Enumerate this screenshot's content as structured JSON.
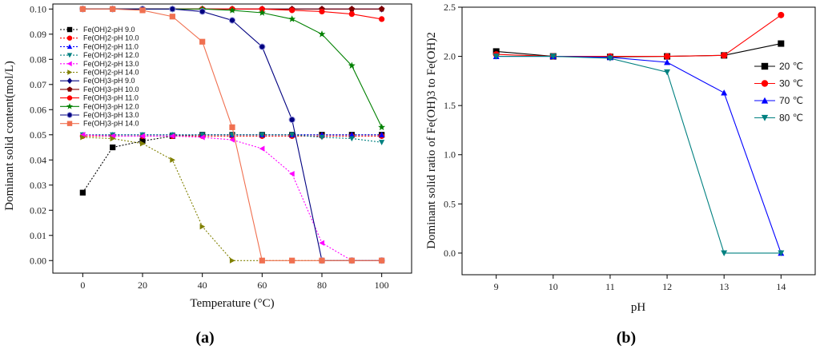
{
  "chart_data": [
    {
      "type": "line",
      "panel_label": "(a)",
      "xlabel": "Temperature (°C)",
      "ylabel": "Dominant solid content(mol/L)",
      "xlim": [
        -10,
        110
      ],
      "ylim": [
        -0.005,
        0.102
      ],
      "xticks": [
        0,
        20,
        40,
        60,
        80,
        100
      ],
      "yticks": [
        0.0,
        0.01,
        0.02,
        0.03,
        0.04,
        0.05,
        0.06,
        0.07,
        0.08,
        0.09,
        0.1
      ],
      "x": [
        0,
        10,
        20,
        30,
        40,
        50,
        60,
        70,
        80,
        90,
        100
      ],
      "legend_position": "top-left",
      "series": [
        {
          "name": "Fe(OH)2-pH 9.0",
          "color": "#000000",
          "marker": "square",
          "dashed": true,
          "values": [
            0.027,
            0.045,
            0.0475,
            0.0495,
            0.05,
            0.05,
            0.05,
            0.05,
            0.05,
            0.05,
            0.05
          ]
        },
        {
          "name": "Fe(OH)2-pH 10.0",
          "color": "#ff0000",
          "marker": "circle",
          "dashed": true,
          "values": [
            0.0495,
            0.0495,
            0.0495,
            0.0495,
            0.0495,
            0.0495,
            0.0495,
            0.0495,
            0.0495,
            0.0495,
            0.0495
          ]
        },
        {
          "name": "Fe(OH)2-pH 11.0",
          "color": "#0000ff",
          "marker": "triangle-up",
          "dashed": true,
          "values": [
            0.05,
            0.05,
            0.05,
            0.05,
            0.05,
            0.05,
            0.05,
            0.05,
            0.05,
            0.05,
            0.05
          ]
        },
        {
          "name": "Fe(OH)2-pH 12.0",
          "color": "#008080",
          "marker": "triangle-down",
          "dashed": true,
          "values": [
            0.05,
            0.05,
            0.05,
            0.05,
            0.05,
            0.05,
            0.05,
            0.05,
            0.049,
            0.0485,
            0.047
          ]
        },
        {
          "name": "Fe(OH)2-pH 13.0",
          "color": "#ff00ff",
          "marker": "triangle-left",
          "dashed": true,
          "values": [
            0.05,
            0.0495,
            0.0495,
            0.0495,
            0.049,
            0.048,
            0.0445,
            0.0345,
            0.007,
            0.0,
            0.0
          ]
        },
        {
          "name": "Fe(OH)2-pH 14.0",
          "color": "#808000",
          "marker": "triangle-right",
          "dashed": true,
          "values": [
            0.049,
            0.0485,
            0.0465,
            0.04,
            0.0135,
            0.0,
            0.0,
            0.0,
            0.0,
            0.0,
            0.0
          ]
        },
        {
          "name": "Fe(OH)3-pH 9.0",
          "color": "#000080",
          "marker": "diamond",
          "dashed": false,
          "values": [
            0.1,
            0.1,
            0.1,
            0.1,
            0.1,
            0.1,
            0.1,
            0.1,
            0.1,
            0.1,
            0.1
          ]
        },
        {
          "name": "Fe(OH)3-pH 10.0",
          "color": "#800000",
          "marker": "pentagon",
          "dashed": false,
          "values": [
            0.1,
            0.1,
            0.1,
            0.1,
            0.1,
            0.1,
            0.1,
            0.1,
            0.1,
            0.1,
            0.1
          ]
        },
        {
          "name": "Fe(OH)3-pH 11.0",
          "color": "#ff0000",
          "marker": "circle",
          "dashed": false,
          "values": [
            0.1,
            0.1,
            0.1,
            0.1,
            0.1,
            0.1,
            0.1,
            0.0995,
            0.099,
            0.098,
            0.096
          ]
        },
        {
          "name": "Fe(OH)3-pH 12.0",
          "color": "#008000",
          "marker": "star",
          "dashed": false,
          "values": [
            0.1,
            0.1,
            0.1,
            0.1,
            0.1,
            0.0995,
            0.0985,
            0.096,
            0.09,
            0.0775,
            0.053
          ]
        },
        {
          "name": "Fe(OH)3-pH 13.0",
          "color": "#000080",
          "marker": "sphere",
          "dashed": false,
          "values": [
            0.1,
            0.1,
            0.1,
            0.1,
            0.099,
            0.0955,
            0.085,
            0.056,
            0.0,
            0.0,
            0.0
          ]
        },
        {
          "name": "Fe(OH)3-pH 14.0",
          "color": "#f07050",
          "marker": "square",
          "dashed": false,
          "values": [
            0.1,
            0.1,
            0.0995,
            0.097,
            0.087,
            0.053,
            0.0,
            0.0,
            0.0,
            0.0,
            0.0
          ]
        }
      ]
    },
    {
      "type": "line",
      "panel_label": "(b)",
      "xlabel": "pH",
      "ylabel": "Dominant solid ratio of Fe(OH)3 to Fe(OH)2",
      "xlim": [
        8.4,
        14.6
      ],
      "ylim": [
        -0.22,
        2.5
      ],
      "xticks": [
        9,
        10,
        11,
        12,
        13,
        14
      ],
      "yticks": [
        0.0,
        0.5,
        1.0,
        1.5,
        2.0,
        2.5
      ],
      "ytick_labels": [
        "0.0",
        "0.5",
        "1.0",
        "1.5",
        "2.0",
        "2.5"
      ],
      "x": [
        9,
        10,
        11,
        12,
        13,
        14
      ],
      "legend_position": "right",
      "series": [
        {
          "name": "20 ℃",
          "color": "#000000",
          "marker": "square",
          "values": [
            2.05,
            2.0,
            1.995,
            2.0,
            2.01,
            2.13
          ]
        },
        {
          "name": "30 ℃",
          "color": "#ff0000",
          "marker": "circle",
          "values": [
            2.02,
            2.0,
            2.0,
            2.0,
            2.01,
            2.42
          ]
        },
        {
          "name": "70 ℃",
          "color": "#0000ff",
          "marker": "triangle-up",
          "values": [
            2.0,
            2.0,
            1.99,
            1.94,
            1.63,
            0.0
          ]
        },
        {
          "name": "80 ℃",
          "color": "#008080",
          "marker": "triangle-down",
          "values": [
            2.0,
            2.0,
            1.98,
            1.84,
            0.0,
            0.0
          ]
        }
      ]
    }
  ]
}
